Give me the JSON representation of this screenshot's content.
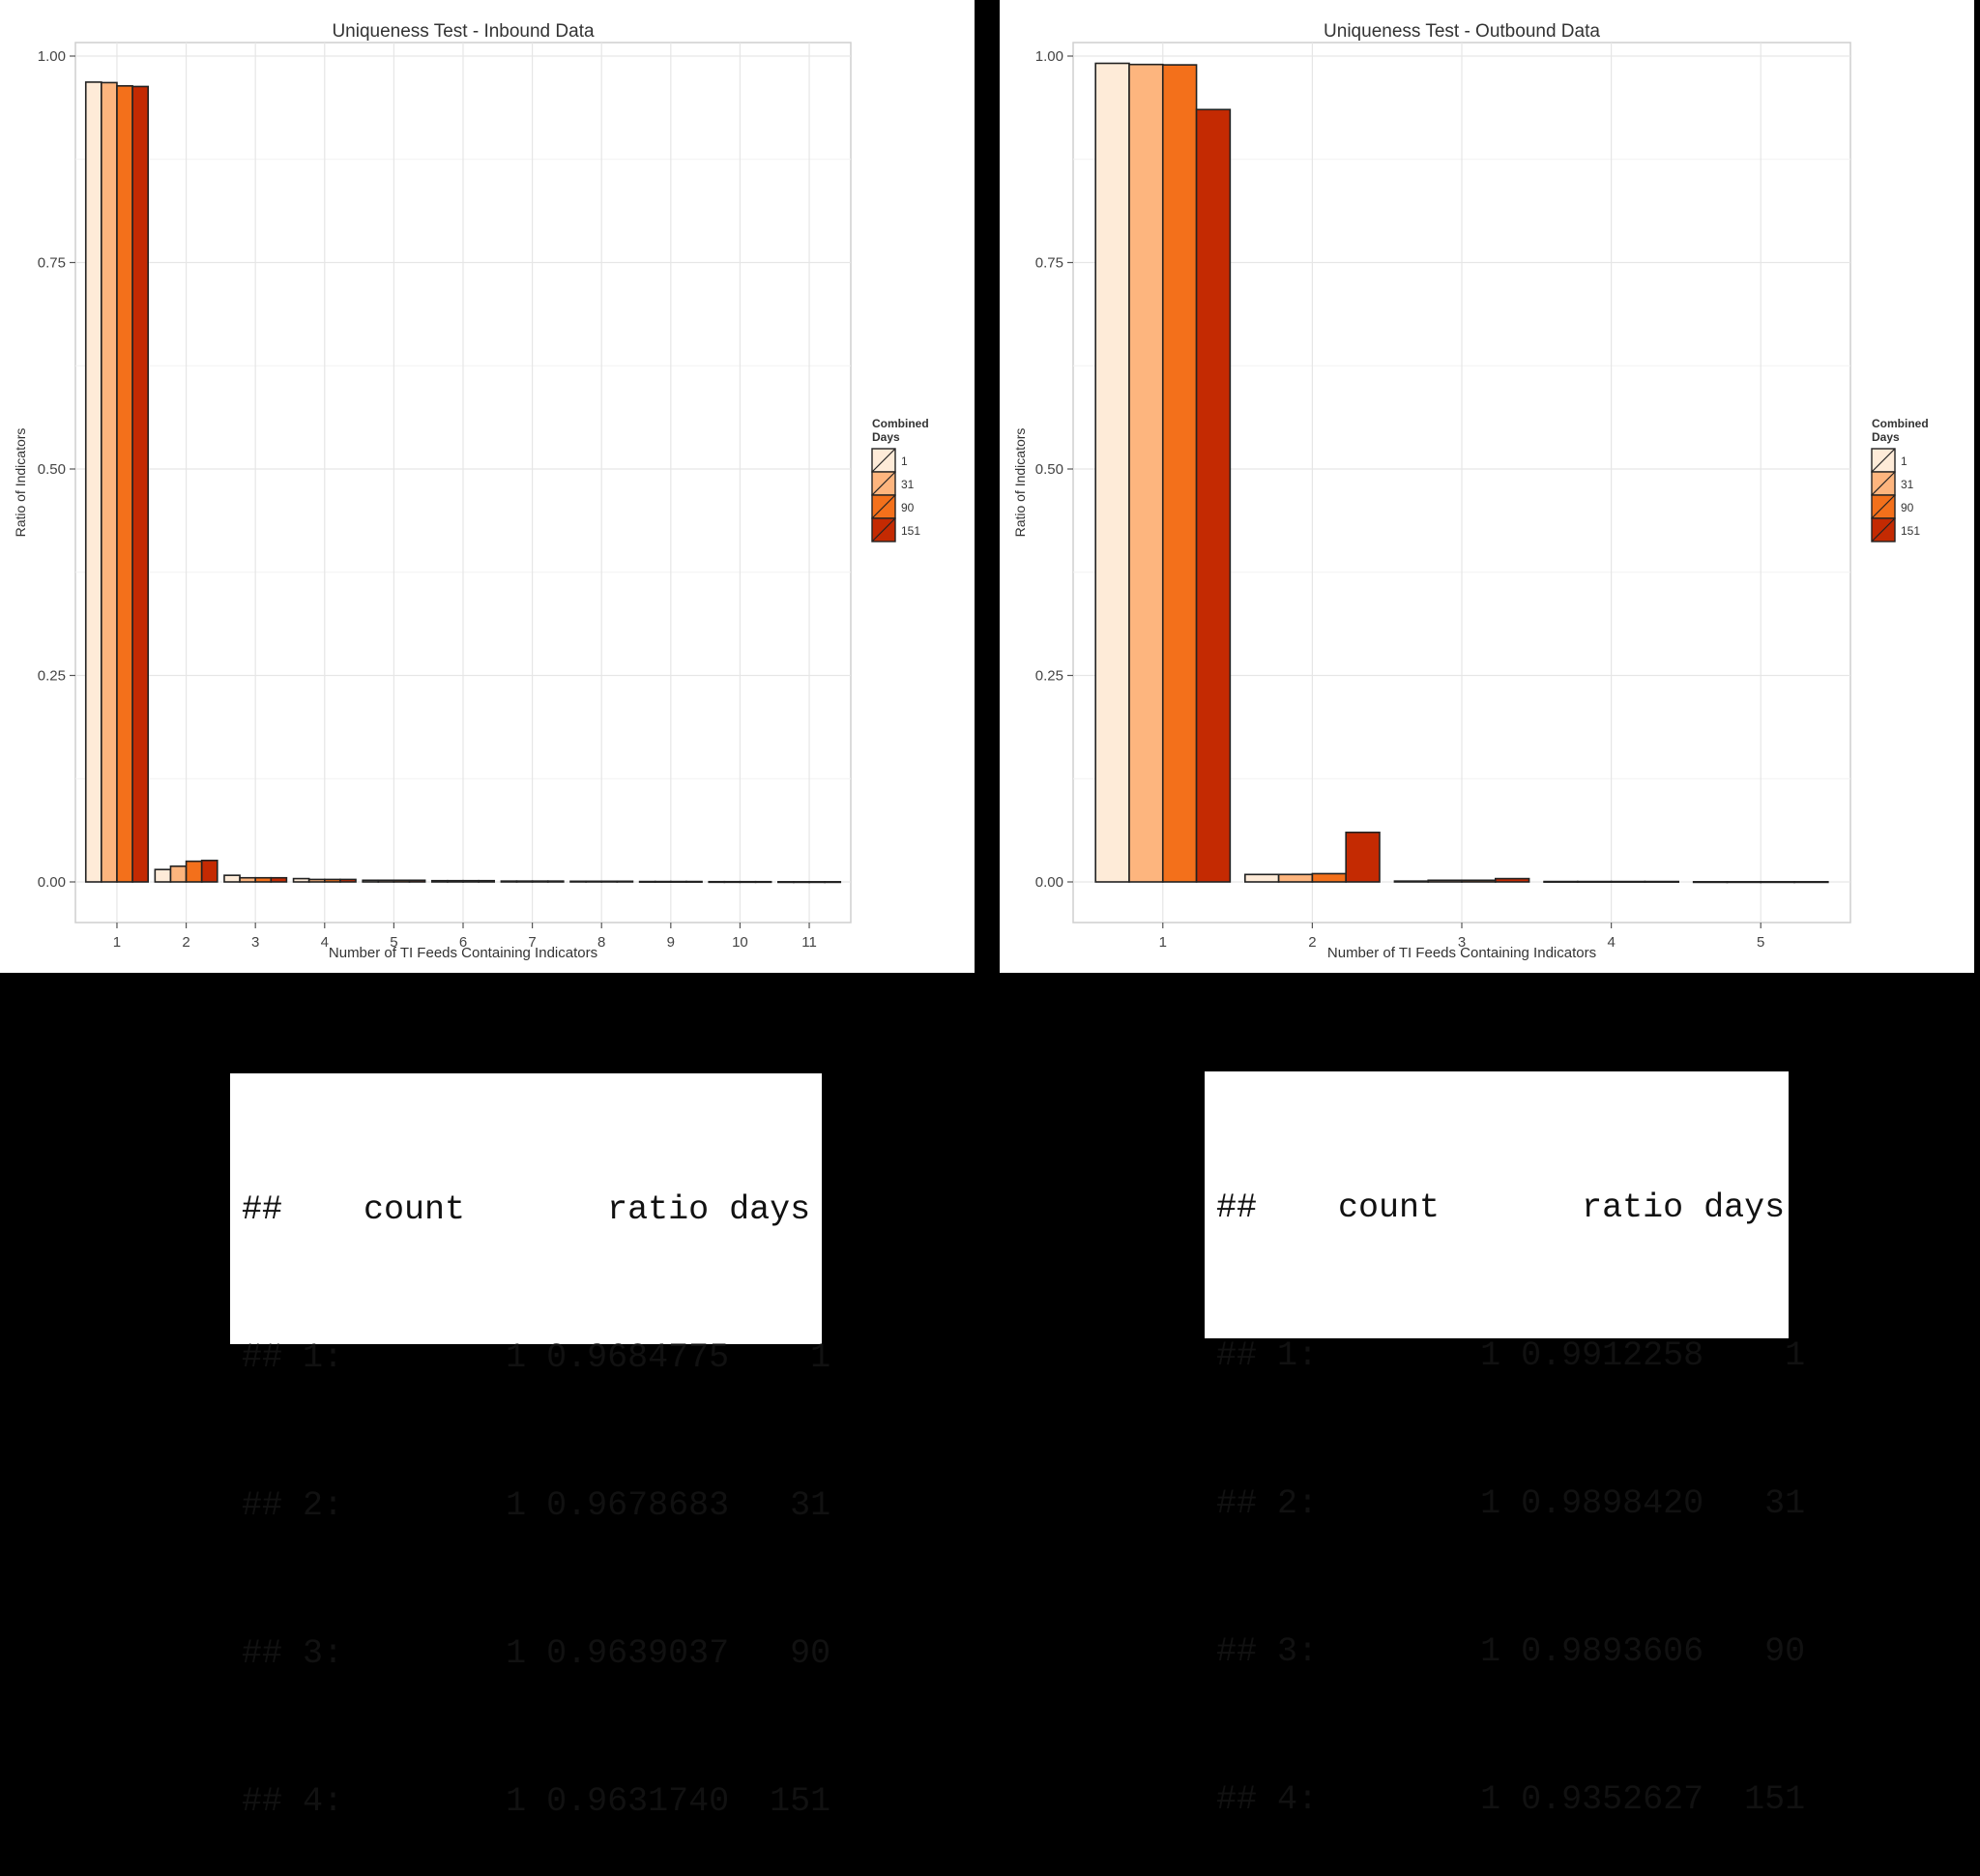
{
  "chart_data": [
    {
      "type": "bar",
      "title": "Uniqueness Test - Inbound Data",
      "xlabel": "Number of TI Feeds Containing Indicators",
      "ylabel": "Ratio of Indicators",
      "ylim": [
        0,
        1
      ],
      "yticks": [
        "0.00",
        "0.25",
        "0.50",
        "0.75",
        "1.00"
      ],
      "grid": true,
      "legend": {
        "title_line1": "Combined",
        "title_line2": "Days",
        "position": "right"
      },
      "categories": [
        "1",
        "2",
        "3",
        "4",
        "5",
        "6",
        "7",
        "8",
        "9",
        "10",
        "11"
      ],
      "series": [
        {
          "name": "1",
          "color": "#FEEBD8",
          "values": [
            0.9684775,
            0.015,
            0.008,
            0.004,
            0.002,
            0.0015,
            0.001,
            0.0008,
            0.0005,
            0.0003,
            0.0002
          ]
        },
        {
          "name": "31",
          "color": "#FDB57E",
          "values": [
            0.9678683,
            0.019,
            0.005,
            0.003,
            0.002,
            0.0015,
            0.001,
            0.0008,
            0.0005,
            0.0003,
            0.0002
          ]
        },
        {
          "name": "90",
          "color": "#F3701B",
          "values": [
            0.9639037,
            0.025,
            0.005,
            0.003,
            0.002,
            0.0015,
            0.001,
            0.0008,
            0.0005,
            0.0003,
            0.0002
          ]
        },
        {
          "name": "151",
          "color": "#C42A02",
          "values": [
            0.963174,
            0.026,
            0.005,
            0.003,
            0.002,
            0.0015,
            0.001,
            0.0008,
            0.0005,
            0.0003,
            0.0002
          ]
        }
      ]
    },
    {
      "type": "bar",
      "title": "Uniqueness Test - Outbound Data",
      "xlabel": "Number of TI Feeds Containing Indicators",
      "ylabel": "Ratio of Indicators",
      "ylim": [
        0,
        1
      ],
      "yticks": [
        "0.00",
        "0.25",
        "0.50",
        "0.75",
        "1.00"
      ],
      "grid": true,
      "legend": {
        "title_line1": "Combined",
        "title_line2": "Days",
        "position": "right"
      },
      "categories": [
        "1",
        "2",
        "3",
        "4",
        "5"
      ],
      "series": [
        {
          "name": "1",
          "color": "#FEEBD8",
          "values": [
            0.9912258,
            0.009,
            0.001,
            0.0005,
            0.0002
          ]
        },
        {
          "name": "31",
          "color": "#FDB57E",
          "values": [
            0.989842,
            0.009,
            0.002,
            0.0005,
            0.0002
          ]
        },
        {
          "name": "90",
          "color": "#F3701B",
          "values": [
            0.9893606,
            0.01,
            0.002,
            0.0005,
            0.0002
          ]
        },
        {
          "name": "151",
          "color": "#C42A02",
          "values": [
            0.9352627,
            0.06,
            0.004,
            0.0005,
            0.0002
          ]
        }
      ]
    }
  ],
  "tables": [
    {
      "header": {
        "hash": "##",
        "count": "count",
        "ratio": "ratio",
        "days": "days"
      },
      "rows": [
        {
          "hash": "##",
          "idx": "1:",
          "count": "1",
          "ratio": "0.9684775",
          "days": "1"
        },
        {
          "hash": "##",
          "idx": "2:",
          "count": "1",
          "ratio": "0.9678683",
          "days": "31"
        },
        {
          "hash": "##",
          "idx": "3:",
          "count": "1",
          "ratio": "0.9639037",
          "days": "90"
        },
        {
          "hash": "##",
          "idx": "4:",
          "count": "1",
          "ratio": "0.9631740",
          "days": "151"
        }
      ]
    },
    {
      "header": {
        "hash": "##",
        "count": "count",
        "ratio": "ratio",
        "days": "days"
      },
      "rows": [
        {
          "hash": "##",
          "idx": "1:",
          "count": "1",
          "ratio": "0.9912258",
          "days": "1"
        },
        {
          "hash": "##",
          "idx": "2:",
          "count": "1",
          "ratio": "0.9898420",
          "days": "31"
        },
        {
          "hash": "##",
          "idx": "3:",
          "count": "1",
          "ratio": "0.9893606",
          "days": "90"
        },
        {
          "hash": "##",
          "idx": "4:",
          "count": "1",
          "ratio": "0.9352627",
          "days": "151"
        }
      ]
    }
  ]
}
